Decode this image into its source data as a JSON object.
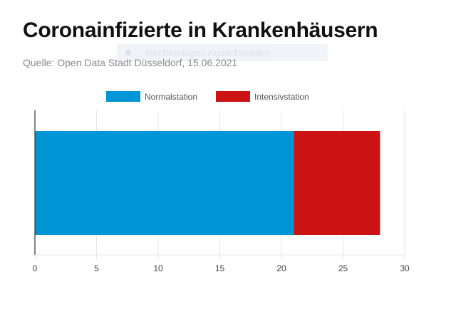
{
  "header": {
    "title": "Coronainfizierte in Krankenhäusern",
    "subtitle": "Quelle: Open Data Stadt Düsseldorf, 15.06.2021"
  },
  "overlay": {
    "label": "Rechteckiges Ausschneiden"
  },
  "colors": {
    "normalstation": "#0096d6",
    "intensivstation": "#cc1414",
    "grid": "#e6e6e6",
    "axis": "#333333"
  },
  "chart_data": {
    "type": "bar",
    "orientation": "horizontal",
    "stacked": true,
    "categories": [
      ""
    ],
    "series": [
      {
        "name": "Normalstation",
        "values": [
          21
        ],
        "color": "#0096d6"
      },
      {
        "name": "Intensivstation",
        "values": [
          7
        ],
        "color": "#cc1414"
      }
    ],
    "xlim": [
      0,
      30
    ],
    "xticks": [
      0,
      5,
      10,
      15,
      20,
      25,
      30
    ],
    "title": "Coronainfizierte in Krankenhäusern",
    "subtitle": "Quelle: Open Data Stadt Düsseldorf, 15.06.2021",
    "xlabel": "",
    "ylabel": "",
    "grid": true,
    "legend": "top-center"
  }
}
